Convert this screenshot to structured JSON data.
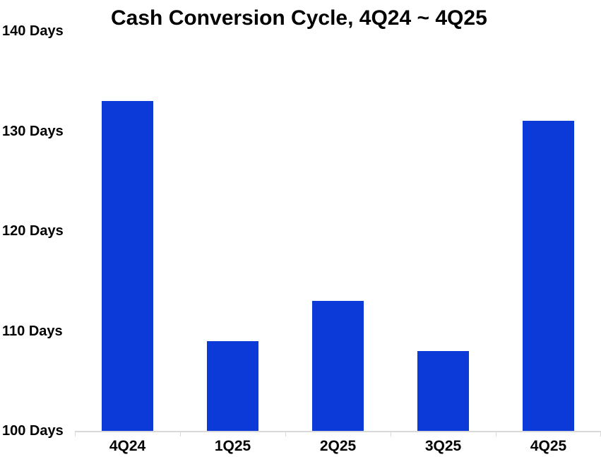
{
  "page": {
    "background_color": "#ffffff"
  },
  "chart_data": {
    "type": "bar",
    "title": "Cash Conversion Cycle, 4Q24 ~ 4Q25",
    "categories": [
      "4Q24",
      "1Q25",
      "2Q25",
      "3Q25",
      "4Q25"
    ],
    "values": [
      133,
      109,
      113,
      108,
      131
    ],
    "unit": "Days",
    "xlabel": "",
    "ylabel": "",
    "ylim": [
      100,
      140
    ],
    "ytick_step": 10,
    "ytick_labels": [
      "100 Days",
      "110 Days",
      "120 Days",
      "130 Days",
      "140 Days"
    ],
    "legend_position": "none",
    "grid": false,
    "colors": {
      "bar": "#0c3ad9",
      "axis": "#d9d9d9",
      "text": "#000000",
      "background": "#ffffff"
    }
  }
}
